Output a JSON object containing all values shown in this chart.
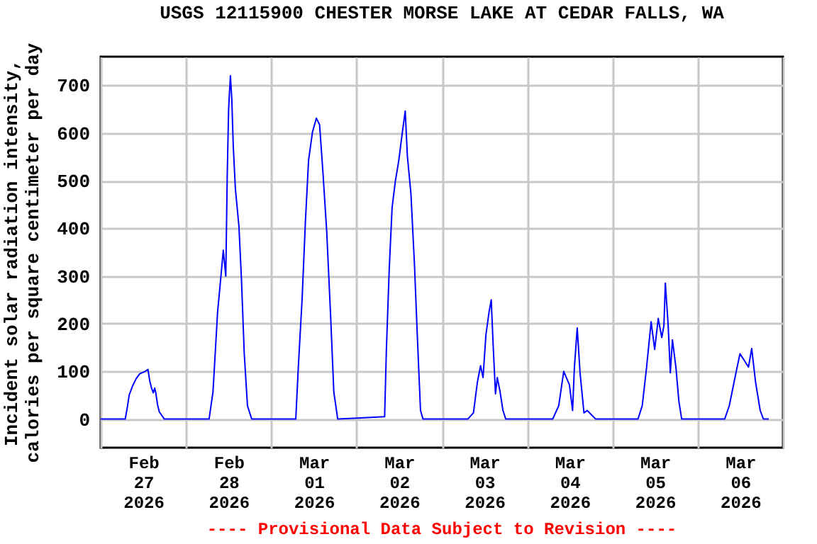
{
  "chart_data": {
    "type": "line",
    "title": "USGS 12115900 CHESTER MORSE LAKE AT CEDAR FALLS, WA",
    "ylabel": "Incident solar radiation intensity,\ncalories per square centimeter per day",
    "annotations": [
      "---- Provisional Data Subject to Revision ----"
    ],
    "x": [
      "2026-02-27T00:00",
      "2026-02-27T06:54",
      "2026-02-27T07:30",
      "2026-02-27T08:00",
      "2026-02-27T09:00",
      "2026-02-27T10:00",
      "2026-02-27T11:00",
      "2026-02-27T12:30",
      "2026-02-27T13:18",
      "2026-02-27T13:48",
      "2026-02-27T14:18",
      "2026-02-27T14:48",
      "2026-02-27T15:12",
      "2026-02-27T15:30",
      "2026-02-27T16:00",
      "2026-02-27T16:30",
      "2026-02-27T17:54",
      "2026-02-28T06:30",
      "2026-02-28T07:36",
      "2026-02-28T08:54",
      "2026-02-28T09:54",
      "2026-02-28T10:30",
      "2026-02-28T11:12",
      "2026-02-28T11:36",
      "2026-02-28T12:00",
      "2026-02-28T12:30",
      "2026-02-28T12:54",
      "2026-02-28T13:18",
      "2026-02-28T13:54",
      "2026-02-28T14:54",
      "2026-02-28T15:36",
      "2026-02-28T16:24",
      "2026-02-28T17:18",
      "2026-02-28T18:30",
      "2026-03-01T06:54",
      "2026-03-01T07:36",
      "2026-03-01T08:42",
      "2026-03-01T09:36",
      "2026-03-01T10:30",
      "2026-03-01T11:36",
      "2026-03-01T12:42",
      "2026-03-01T13:36",
      "2026-03-01T14:30",
      "2026-03-01T15:36",
      "2026-03-01T16:42",
      "2026-03-01T17:36",
      "2026-03-01T18:42",
      "2026-03-02T07:54",
      "2026-03-02T08:24",
      "2026-03-02T09:12",
      "2026-03-02T10:00",
      "2026-03-02T10:54",
      "2026-03-02T11:54",
      "2026-03-02T12:54",
      "2026-03-02T13:42",
      "2026-03-02T14:18",
      "2026-03-02T15:18",
      "2026-03-02T16:18",
      "2026-03-02T17:12",
      "2026-03-02T18:00",
      "2026-03-02T18:42",
      "2026-03-03T07:18",
      "2026-03-03T08:54",
      "2026-03-03T10:00",
      "2026-03-03T10:54",
      "2026-03-03T11:36",
      "2026-03-03T12:24",
      "2026-03-03T13:18",
      "2026-03-03T13:54",
      "2026-03-03T14:30",
      "2026-03-03T15:06",
      "2026-03-03T15:36",
      "2026-03-03T16:24",
      "2026-03-03T17:12",
      "2026-03-03T18:00",
      "2026-03-04T07:12",
      "2026-03-04T08:54",
      "2026-03-04T10:18",
      "2026-03-04T11:54",
      "2026-03-04T12:48",
      "2026-03-04T13:18",
      "2026-03-04T14:06",
      "2026-03-04T14:54",
      "2026-03-04T16:00",
      "2026-03-04T16:54",
      "2026-03-04T19:18",
      "2026-03-05T07:12",
      "2026-03-05T08:24",
      "2026-03-05T09:36",
      "2026-03-05T10:54",
      "2026-03-05T11:54",
      "2026-03-05T12:54",
      "2026-03-05T13:54",
      "2026-03-05T14:30",
      "2026-03-05T14:54",
      "2026-03-05T15:42",
      "2026-03-05T16:18",
      "2026-03-05T16:54",
      "2026-03-05T17:54",
      "2026-03-05T18:42",
      "2026-03-05T19:30",
      "2026-03-06T07:36",
      "2026-03-06T08:54",
      "2026-03-06T10:30",
      "2026-03-06T11:54",
      "2026-03-06T13:12",
      "2026-03-06T14:18",
      "2026-03-06T15:12",
      "2026-03-06T16:18",
      "2026-03-06T17:36",
      "2026-03-06T18:30",
      "2026-03-06T20:00"
    ],
    "series": [
      {
        "color": "#0000ff",
        "values": [
          0,
          0,
          25,
          50,
          70,
          85,
          95,
          100,
          104,
          80,
          65,
          55,
          65,
          55,
          30,
          15,
          0,
          0,
          57,
          225,
          305,
          354,
          300,
          507,
          651,
          720,
          670,
          573,
          483,
          404,
          295,
          137,
          28,
          0,
          0,
          107,
          255,
          413,
          543,
          602,
          631,
          617,
          522,
          394,
          217,
          57,
          0,
          5,
          146,
          315,
          443,
          498,
          543,
          602,
          646,
          552,
          473,
          324,
          157,
          18,
          0,
          0,
          13,
          77,
          112,
          87,
          176,
          225,
          250,
          146,
          53,
          87,
          57,
          18,
          0,
          0,
          28,
          100,
          72,
          18,
          107,
          191,
          97,
          13,
          18,
          0,
          0,
          28,
          107,
          204,
          146,
          211,
          171,
          196,
          285,
          196,
          97,
          166,
          107,
          38,
          0,
          0,
          28,
          87,
          137,
          122,
          109,
          148,
          77,
          18,
          0,
          0
        ]
      }
    ],
    "xlim": [
      "2026-02-27T00:00",
      "2026-03-07T00:00"
    ],
    "xticks": [
      {
        "value": "2026-02-27T00:00",
        "label": null
      },
      {
        "value": "2026-02-27T12:00",
        "label": "Feb\n27\n2026"
      },
      {
        "value": "2026-02-28T00:00",
        "label": null
      },
      {
        "value": "2026-02-28T12:00",
        "label": "Feb\n28\n2026"
      },
      {
        "value": "2026-03-01T00:00",
        "label": null
      },
      {
        "value": "2026-03-01T12:00",
        "label": "Mar\n01\n2026"
      },
      {
        "value": "2026-03-02T00:00",
        "label": null
      },
      {
        "value": "2026-03-02T12:00",
        "label": "Mar\n02\n2026"
      },
      {
        "value": "2026-03-03T00:00",
        "label": null
      },
      {
        "value": "2026-03-03T12:00",
        "label": "Mar\n03\n2026"
      },
      {
        "value": "2026-03-04T00:00",
        "label": null
      },
      {
        "value": "2026-03-04T12:00",
        "label": "Mar\n04\n2026"
      },
      {
        "value": "2026-03-05T00:00",
        "label": null
      },
      {
        "value": "2026-03-05T12:00",
        "label": "Mar\n05\n2026"
      },
      {
        "value": "2026-03-06T00:00",
        "label": null
      },
      {
        "value": "2026-03-06T12:00",
        "label": "Mar\n06\n2026"
      },
      {
        "value": "2026-03-07T00:00",
        "label": null
      }
    ],
    "ylim": [
      -60,
      760
    ],
    "yticks": [
      0,
      100,
      200,
      300,
      400,
      500,
      600,
      700
    ],
    "grid": true
  }
}
